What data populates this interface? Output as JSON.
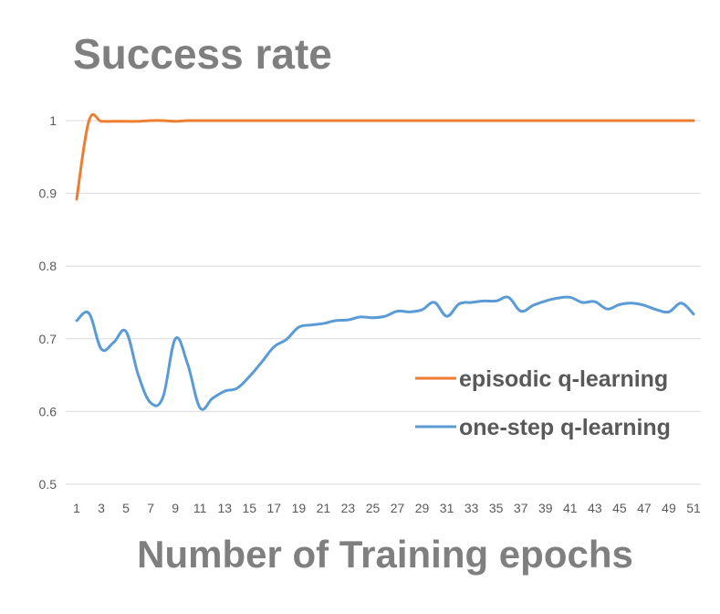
{
  "chart_data": {
    "type": "line",
    "title": "Success rate",
    "xlabel": "Number of Training epochs",
    "ylabel": "",
    "ylim": [
      0.5,
      1.0
    ],
    "yticks": [
      0.5,
      0.6,
      0.7,
      0.8,
      0.9,
      1
    ],
    "ytick_labels": [
      "0.5",
      "0.6",
      "0.7",
      "0.8",
      "0.9",
      "1"
    ],
    "x": [
      1,
      2,
      3,
      4,
      5,
      6,
      7,
      8,
      9,
      10,
      11,
      12,
      13,
      14,
      15,
      16,
      17,
      18,
      19,
      20,
      21,
      22,
      23,
      24,
      25,
      26,
      27,
      28,
      29,
      30,
      31,
      32,
      33,
      34,
      35,
      36,
      37,
      38,
      39,
      40,
      41,
      42,
      43,
      44,
      45,
      46,
      47,
      48,
      49,
      50,
      51
    ],
    "xtick_labels": [
      "1",
      "3",
      "5",
      "7",
      "9",
      "11",
      "13",
      "15",
      "17",
      "19",
      "21",
      "23",
      "25",
      "27",
      "29",
      "31",
      "33",
      "35",
      "37",
      "39",
      "41",
      "43",
      "45",
      "47",
      "49",
      "51"
    ],
    "grid": true,
    "legend_position": "right",
    "series": [
      {
        "name": "episodic q-learning",
        "color": "#ed7d31",
        "values": [
          0.892,
          1.0,
          0.999,
          0.999,
          0.999,
          0.999,
          1.0,
          1.0,
          0.999,
          1.0,
          1.0,
          1.0,
          1.0,
          1.0,
          1.0,
          1.0,
          1.0,
          1.0,
          1.0,
          1.0,
          1.0,
          1.0,
          1.0,
          1.0,
          1.0,
          1.0,
          1.0,
          1.0,
          1.0,
          1.0,
          1.0,
          1.0,
          1.0,
          1.0,
          1.0,
          1.0,
          1.0,
          1.0,
          1.0,
          1.0,
          1.0,
          1.0,
          1.0,
          1.0,
          1.0,
          1.0,
          1.0,
          1.0,
          1.0,
          1.0,
          1.0
        ]
      },
      {
        "name": "one-step q-learning",
        "color": "#5b9bd5",
        "values": [
          0.725,
          0.735,
          0.686,
          0.695,
          0.71,
          0.65,
          0.612,
          0.62,
          0.7,
          0.665,
          0.605,
          0.618,
          0.628,
          0.632,
          0.648,
          0.668,
          0.689,
          0.699,
          0.716,
          0.719,
          0.721,
          0.725,
          0.726,
          0.73,
          0.729,
          0.731,
          0.738,
          0.737,
          0.74,
          0.75,
          0.731,
          0.748,
          0.75,
          0.752,
          0.752,
          0.757,
          0.738,
          0.746,
          0.752,
          0.756,
          0.757,
          0.75,
          0.751,
          0.741,
          0.747,
          0.749,
          0.746,
          0.74,
          0.737,
          0.749,
          0.734
        ]
      }
    ]
  }
}
